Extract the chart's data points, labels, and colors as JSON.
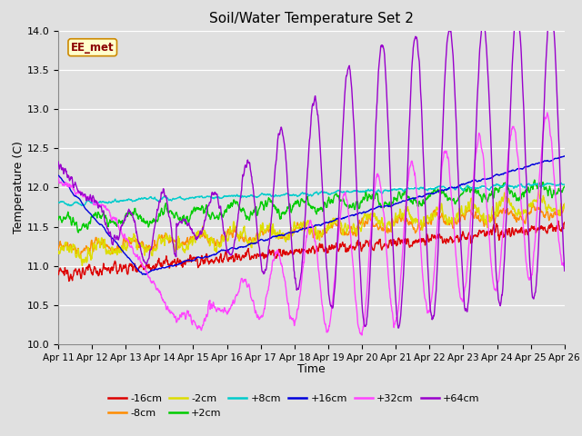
{
  "title": "Soil/Water Temperature Set 2",
  "xlabel": "Time",
  "ylabel": "Temperature (C)",
  "ylim": [
    10.0,
    14.0
  ],
  "yticks": [
    10.0,
    10.5,
    11.0,
    11.5,
    12.0,
    12.5,
    13.0,
    13.5,
    14.0
  ],
  "x_labels": [
    "Apr 11",
    "Apr 12",
    "Apr 13",
    "Apr 14",
    "Apr 15",
    "Apr 16",
    "Apr 17",
    "Apr 18",
    "Apr 19",
    "Apr 20",
    "Apr 21",
    "Apr 22",
    "Apr 23",
    "Apr 24",
    "Apr 25",
    "Apr 26"
  ],
  "colors": {
    "-16cm": "#dd0000",
    "-8cm": "#ff8c00",
    "-2cm": "#dddd00",
    "+2cm": "#00cc00",
    "+8cm": "#00cccc",
    "+16cm": "#0000dd",
    "+32cm": "#ff44ff",
    "+64cm": "#9900cc"
  },
  "legend_label": "EE_met",
  "fig_bg": "#e0e0e0",
  "plot_bg": "#e0e0e0",
  "grid_color": "#ffffff",
  "lw": 1.0
}
